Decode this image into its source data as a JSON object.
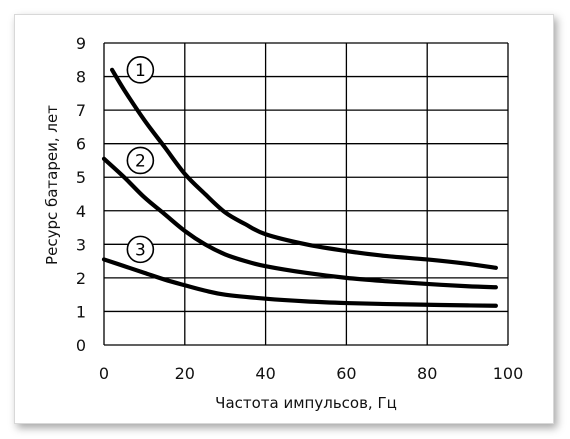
{
  "chart_data": {
    "type": "line",
    "xlabel": "Частота импульсов, Гц",
    "ylabel": "Ресурс батареи, лет",
    "xlim": [
      0,
      100
    ],
    "ylim": [
      0,
      9
    ],
    "x_ticks": [
      0,
      20,
      40,
      60,
      80,
      100
    ],
    "y_ticks": [
      0,
      1,
      2,
      3,
      4,
      5,
      6,
      7,
      8,
      9
    ],
    "grid": true,
    "colors": {
      "curve": "#000000",
      "grid": "#000000",
      "background": "#ffffff"
    },
    "series": [
      {
        "name": "1",
        "x": [
          2,
          5,
          10,
          15,
          20,
          25,
          30,
          35,
          40,
          50,
          60,
          70,
          80,
          90,
          97
        ],
        "y": [
          8.2,
          7.6,
          6.7,
          5.9,
          5.1,
          4.5,
          3.95,
          3.6,
          3.3,
          3.0,
          2.8,
          2.65,
          2.55,
          2.42,
          2.3
        ]
      },
      {
        "name": "2",
        "x": [
          0,
          5,
          10,
          15,
          20,
          25,
          30,
          35,
          40,
          50,
          60,
          70,
          80,
          90,
          97
        ],
        "y": [
          5.55,
          5.0,
          4.4,
          3.9,
          3.4,
          3.0,
          2.7,
          2.5,
          2.35,
          2.15,
          2.0,
          1.9,
          1.82,
          1.75,
          1.72
        ]
      },
      {
        "name": "3",
        "x": [
          0,
          5,
          10,
          15,
          20,
          25,
          30,
          40,
          50,
          60,
          70,
          80,
          90,
          97
        ],
        "y": [
          2.55,
          2.35,
          2.15,
          1.95,
          1.78,
          1.62,
          1.5,
          1.38,
          1.3,
          1.25,
          1.22,
          1.2,
          1.18,
          1.17
        ]
      }
    ],
    "curve_markers": [
      {
        "label": "1",
        "x": 9,
        "y": 8.2
      },
      {
        "label": "2",
        "x": 9,
        "y": 5.5
      },
      {
        "label": "3",
        "x": 9,
        "y": 2.85
      }
    ]
  }
}
